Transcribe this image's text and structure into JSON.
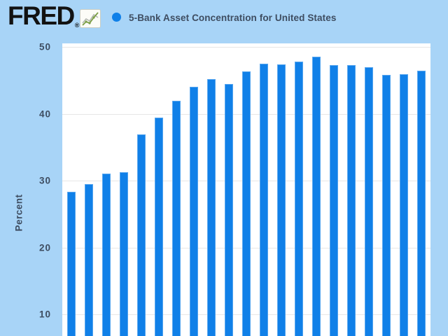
{
  "header": {
    "logo": "FRED",
    "registered_mark": "®",
    "series_title": "5-Bank Asset Concentration for United States"
  },
  "chart_data": {
    "type": "bar",
    "title": "5-Bank Asset Concentration for United States",
    "xlabel": "",
    "ylabel": "Percent",
    "yticks": [
      50,
      40,
      30,
      20,
      10
    ],
    "ylim": [
      0,
      50
    ],
    "grid": "horizontal",
    "legend_position": "top-header",
    "x_tick_labels_visible": false,
    "bottom_of_plot_cropped": true,
    "values": [
      28.3,
      29.5,
      31.0,
      31.3,
      36.9,
      39.4,
      41.9,
      44.0,
      45.2,
      44.4,
      46.3,
      47.5,
      47.4,
      47.8,
      48.5,
      47.3,
      47.3,
      47.0,
      45.8,
      45.9,
      46.4
    ],
    "series": [
      {
        "name": "5-Bank Asset Concentration for United States",
        "color": "#1080e8"
      }
    ]
  },
  "colors": {
    "page_background": "#a8d4f7",
    "plot_background": "#ffffff",
    "bar_fill": "#1080e8",
    "bar_border": "#57a6ef",
    "gridline": "#e7e7e7",
    "text": "#3e4d61",
    "logo_text": "#121212",
    "legend_marker": "#1080e8",
    "icon_line_green": "#7b9e45",
    "icon_line_gray": "#b3b7b0"
  },
  "icons": {
    "fred_logo_chart_icon": "line-chart-icon",
    "legend_marker": "series-color-dot"
  }
}
